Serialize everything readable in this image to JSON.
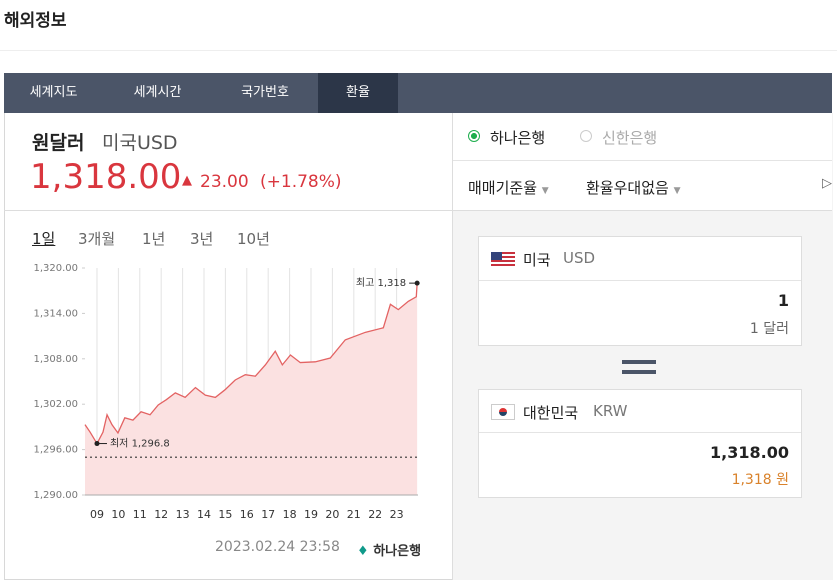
{
  "header": {
    "title": "해외정보"
  },
  "tabs": {
    "items": [
      "세계지도",
      "세계시간",
      "국가번호",
      "환율"
    ],
    "active": 3
  },
  "quote": {
    "name": "원달러",
    "code": "미국USD",
    "price": "1,318.00",
    "change": "23.00",
    "change_pct": "(+1.78%)"
  },
  "periods": {
    "items": [
      "1일",
      "3개월",
      "1년",
      "3년",
      "10년"
    ],
    "active": 0
  },
  "footer": {
    "timestamp": "2023.02.24 23:58",
    "bank": "하나은행"
  },
  "banks": {
    "items": [
      "하나은행",
      "신한은행"
    ],
    "selected": 0
  },
  "dropdowns": [
    "매매기준율",
    "환율우대없음"
  ],
  "converter": {
    "from": {
      "country": "미국",
      "code": "USD",
      "amount": "1",
      "unit_text": "1 달러"
    },
    "to": {
      "country": "대한민국",
      "code": "KRW",
      "amount": "1,318.00",
      "unit_text": "1,318 원"
    }
  },
  "chart_data": {
    "type": "line",
    "x": [
      8.44,
      8.68,
      9.0,
      9.28,
      9.47,
      9.7,
      9.98,
      10.3,
      10.68,
      11.06,
      11.48,
      11.86,
      12.24,
      12.66,
      13.12,
      13.6,
      14.06,
      14.53,
      14.98,
      15.46,
      15.93,
      16.4,
      16.87,
      17.33,
      17.66,
      18.04,
      18.5,
      19.2,
      19.9,
      20.6,
      21.54,
      22.38,
      22.71,
      23.08,
      23.55,
      23.92,
      23.96
    ],
    "series": [
      {
        "color": "#e36363",
        "fill": "#fbe1e1",
        "values": [
          1299.3,
          1298.3,
          1296.8,
          1298.3,
          1300.6,
          1299.3,
          1298.2,
          1300.2,
          1299.9,
          1301,
          1300.6,
          1301.9,
          1302.6,
          1303.5,
          1302.9,
          1304.2,
          1303.2,
          1302.9,
          1303.9,
          1305.2,
          1305.9,
          1305.7,
          1307.2,
          1309,
          1307.2,
          1308.5,
          1307.5,
          1307.6,
          1308.1,
          1310.5,
          1311.5,
          1312.1,
          1315.2,
          1314.5,
          1315.6,
          1316.2,
          1318
        ]
      }
    ],
    "xlim": [
      8.44,
      24
    ],
    "xticks": [
      {
        "value": 9,
        "label": "09"
      },
      10,
      11,
      12,
      13,
      14,
      15,
      16,
      17,
      18,
      19,
      20,
      21,
      22,
      23
    ],
    "ylim": [
      1290,
      1320
    ],
    "yticks": [
      {
        "value": 1290,
        "label": "1,290.00"
      },
      {
        "value": 1296,
        "label": "1,296.00"
      },
      {
        "value": 1302,
        "label": "1,302.00"
      },
      {
        "value": 1308,
        "label": "1,308.00"
      },
      {
        "value": 1314,
        "label": "1,314.00"
      },
      {
        "value": 1320,
        "label": "1,320.00"
      }
    ],
    "grid": "x",
    "reference_line": 1295,
    "annotations": [
      {
        "text": "최고 1,318",
        "x": 23.96,
        "y": 1318
      },
      {
        "text": "최저 1,296.8",
        "x": 9.0,
        "y": 1296.8
      }
    ]
  }
}
